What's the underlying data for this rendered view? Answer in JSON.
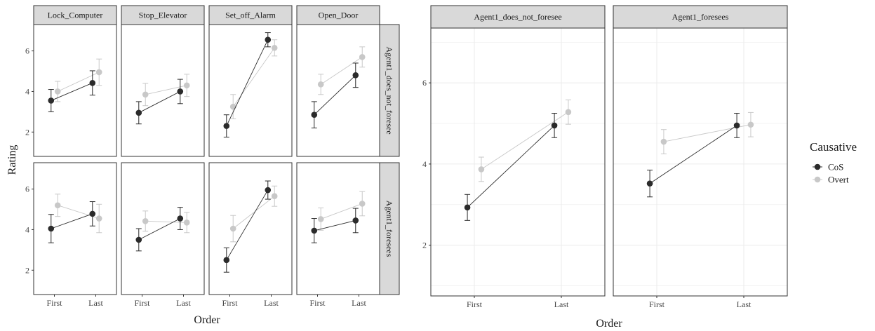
{
  "chart_data": [
    {
      "type": "line",
      "layout": "facet_grid",
      "xlabel": "Order",
      "ylabel": "Rating",
      "x_categories": [
        "First",
        "Last"
      ],
      "y_ticks": [
        2,
        4,
        6
      ],
      "ylim": [
        0.8,
        7.3
      ],
      "facet_cols": [
        "Lock_Computer",
        "Stop_Elevator",
        "Set_off_Alarm",
        "Open_Door"
      ],
      "facet_rows": [
        "Agent1_does_not_foresee",
        "Agent1_foresees"
      ],
      "grid": false,
      "series_names": [
        "CoS",
        "Overt"
      ],
      "panels": [
        {
          "col": 0,
          "row": 0,
          "series": [
            {
              "name": "CoS",
              "values": [
                3.55,
                4.42
              ],
              "err": [
                0.55,
                0.6
              ]
            },
            {
              "name": "Overt",
              "values": [
                4.0,
                4.95
              ],
              "err": [
                0.5,
                0.65
              ]
            }
          ]
        },
        {
          "col": 1,
          "row": 0,
          "series": [
            {
              "name": "CoS",
              "values": [
                2.95,
                4.0
              ],
              "err": [
                0.55,
                0.6
              ]
            },
            {
              "name": "Overt",
              "values": [
                3.85,
                4.3
              ],
              "err": [
                0.55,
                0.55
              ]
            }
          ]
        },
        {
          "col": 2,
          "row": 0,
          "series": [
            {
              "name": "CoS",
              "values": [
                2.3,
                6.55
              ],
              "err": [
                0.55,
                0.35
              ]
            },
            {
              "name": "Overt",
              "values": [
                3.25,
                6.15
              ],
              "err": [
                0.6,
                0.4
              ]
            }
          ]
        },
        {
          "col": 3,
          "row": 0,
          "series": [
            {
              "name": "CoS",
              "values": [
                2.85,
                4.8
              ],
              "err": [
                0.65,
                0.6
              ]
            },
            {
              "name": "Overt",
              "values": [
                4.35,
                5.7
              ],
              "err": [
                0.5,
                0.5
              ]
            }
          ]
        },
        {
          "col": 0,
          "row": 1,
          "series": [
            {
              "name": "CoS",
              "values": [
                4.05,
                4.78
              ],
              "err": [
                0.7,
                0.6
              ]
            },
            {
              "name": "Overt",
              "values": [
                5.2,
                4.55
              ],
              "err": [
                0.55,
                0.7
              ]
            }
          ]
        },
        {
          "col": 1,
          "row": 1,
          "series": [
            {
              "name": "CoS",
              "values": [
                3.5,
                4.55
              ],
              "err": [
                0.55,
                0.55
              ]
            },
            {
              "name": "Overt",
              "values": [
                4.42,
                4.35
              ],
              "err": [
                0.5,
                0.5
              ]
            }
          ]
        },
        {
          "col": 2,
          "row": 1,
          "series": [
            {
              "name": "CoS",
              "values": [
                2.5,
                5.95
              ],
              "err": [
                0.6,
                0.45
              ]
            },
            {
              "name": "Overt",
              "values": [
                4.05,
                5.65
              ],
              "err": [
                0.65,
                0.5
              ]
            }
          ]
        },
        {
          "col": 3,
          "row": 1,
          "series": [
            {
              "name": "CoS",
              "values": [
                3.95,
                4.45
              ],
              "err": [
                0.6,
                0.6
              ]
            },
            {
              "name": "Overt",
              "values": [
                4.52,
                5.28
              ],
              "err": [
                0.55,
                0.6
              ]
            }
          ]
        }
      ]
    },
    {
      "type": "line",
      "layout": "facet_wrap",
      "xlabel": "Order",
      "ylabel": "",
      "x_categories": [
        "First",
        "Last"
      ],
      "y_ticks": [
        2,
        4,
        6
      ],
      "ylim": [
        0.75,
        7.35
      ],
      "facet_cols": [
        "Agent1_does_not_foresee",
        "Agent1_foresees"
      ],
      "grid": true,
      "series_names": [
        "CoS",
        "Overt"
      ],
      "panels": [
        {
          "col": 0,
          "series": [
            {
              "name": "CoS",
              "values": [
                2.93,
                4.95
              ],
              "err": [
                0.32,
                0.3
              ]
            },
            {
              "name": "Overt",
              "values": [
                3.87,
                5.28
              ],
              "err": [
                0.3,
                0.3
              ]
            }
          ]
        },
        {
          "col": 1,
          "series": [
            {
              "name": "CoS",
              "values": [
                3.52,
                4.95
              ],
              "err": [
                0.33,
                0.3
              ]
            },
            {
              "name": "Overt",
              "values": [
                4.55,
                4.97
              ],
              "err": [
                0.3,
                0.3
              ]
            }
          ]
        }
      ]
    }
  ],
  "legend": {
    "title": "Causative",
    "placement": "right",
    "items": [
      {
        "label": "CoS",
        "color": "#2b2b2b"
      },
      {
        "label": "Overt",
        "color": "#c8c8c8"
      }
    ]
  },
  "colors": {
    "CoS": "#2b2b2b",
    "Overt": "#c8c8c8",
    "strip": "#d9d9d9"
  }
}
